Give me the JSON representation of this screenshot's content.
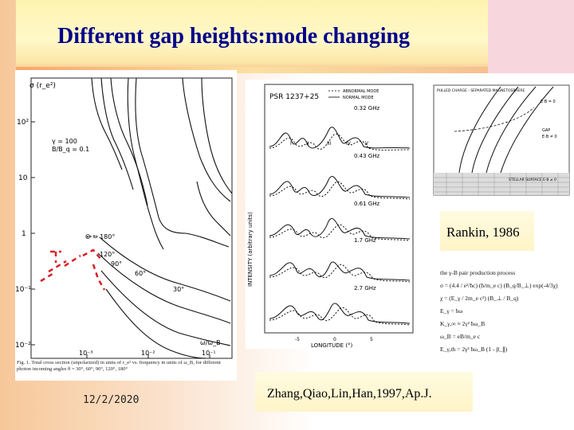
{
  "slide": {
    "title": "Different gap heights:mode changing",
    "date": "12/2/2020",
    "rankin_citation": "Rankin, 1986",
    "zhang_citation": "Zhang,Qiao,Lin,Han,1997,Ap.J."
  },
  "left_figure": {
    "y_axis_label": "σ (r_e²)",
    "y_ticks": [
      "10²",
      "10",
      "1",
      "10⁻¹",
      "10⁻²"
    ],
    "x_ticks": [
      "10⁻³",
      "10⁻²",
      "10⁻¹"
    ],
    "x_axis_label": "ω/ω_B",
    "params": [
      "γ = 100",
      "B/B_q = 0.1"
    ],
    "angle_labels": [
      "Θ = 180°",
      "120°",
      "90°",
      "60°",
      "30°"
    ],
    "caption": "Fig. 1. Total cross section (unpolarized) in units of r_e² vs. frequency in units of ω_B, for different photon incoming angles θ = 30°, 60°, 90°, 120°, 180°"
  },
  "pulse_figure": {
    "source": "PSR 1237+25",
    "legend": [
      "ABNORMAL MODE",
      "NORMAL MODE"
    ],
    "frequencies": [
      "0.32 GHz",
      "0.43 GHz",
      "0.61 GHz",
      "1.7 GHz",
      "2.7 GHz"
    ],
    "components": [
      "I",
      "II",
      "III",
      "IV",
      "V"
    ],
    "y_label": "INTENSITY (arbitrary units)",
    "x_label": "LONGITUDE (°)",
    "x_ticks": [
      "-5",
      "0",
      "5"
    ]
  },
  "gap_figure": {
    "labels": [
      "PULLED CHARGE - SEPARATED MAGNETOSPHERE",
      "E·B = 0",
      "GAP",
      "E·B ≠ 0",
      "STELLAR SURFACE E·B ≠ 0"
    ]
  },
  "equations_figure": {
    "heading": "the γ-B pair production process",
    "lines": [
      "σ = (4.4 / e²/ħc) (ħ/m_e c) (B_q/B_⊥) exp(-4/3χ)",
      "χ = (E_γ / 2m_e c²) (B_⊥ / B_q)",
      "E_γ = ħω",
      "K_γ,∞ ≈ 2γ² ħω_B",
      "ω_B = eB/m_e c",
      "E_γ,th = 2γ² ħω_B (1 - β_∥)"
    ]
  },
  "colors": {
    "title": "#00008b",
    "dashed_marks": "#d81f26"
  }
}
